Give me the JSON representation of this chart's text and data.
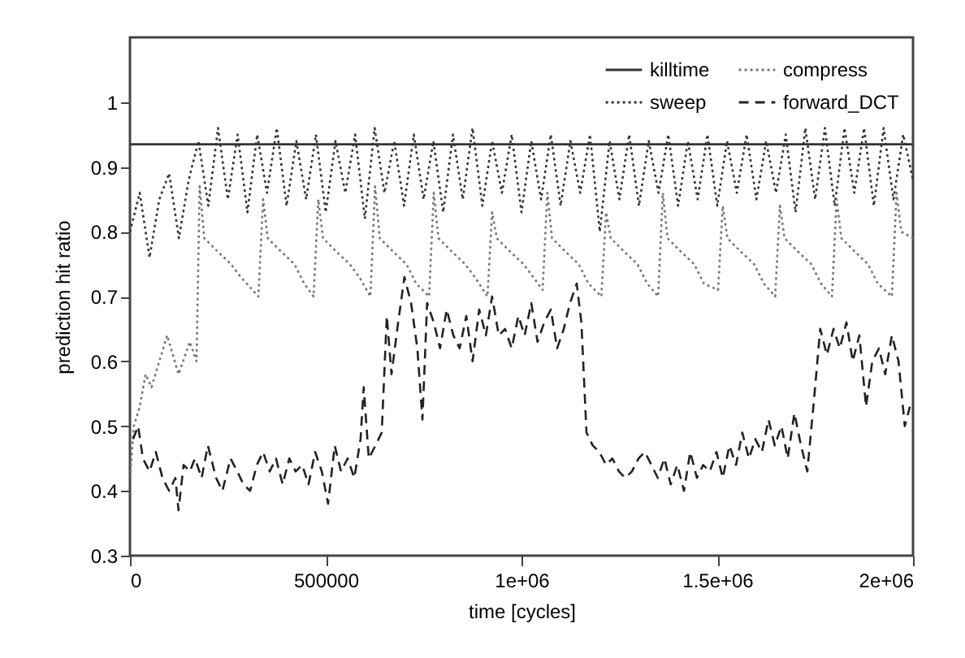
{
  "chart_data": {
    "type": "line",
    "xlabel": "time [cycles]",
    "ylabel": "prediction hit ratio",
    "xlim": [
      0,
      2000000
    ],
    "ylim": [
      0.3,
      1.1
    ],
    "xticks": [
      0,
      500000,
      {
        "value": 1000000,
        "label": "1e+06"
      },
      {
        "value": 1500000,
        "label": "1.5e+06"
      },
      {
        "value": 2000000,
        "label": "2e+06"
      }
    ],
    "yticks": [
      0.3,
      0.4,
      0.5,
      0.6,
      0.7,
      0.8,
      0.9,
      1
    ],
    "legend": "top right",
    "series": [
      {
        "name": "killtime",
        "color": "#333333",
        "line_style": "solid",
        "x": [
          0,
          500000,
          1000000,
          1500000,
          2000000
        ],
        "values": [
          0.935,
          0.935,
          0.935,
          0.935,
          0.935
        ]
      },
      {
        "name": "sweep",
        "color": "#333333",
        "line_style": "dotted",
        "x": [
          0,
          25000,
          50000,
          75000,
          100000,
          125000,
          150000,
          175000,
          200000,
          225000,
          250000,
          275000,
          300000,
          325000,
          350000,
          375000,
          400000,
          425000,
          450000,
          475000,
          500000,
          525000,
          550000,
          575000,
          600000,
          625000,
          650000,
          675000,
          700000,
          725000,
          750000,
          775000,
          800000,
          825000,
          850000,
          875000,
          900000,
          925000,
          950000,
          975000,
          1000000,
          1025000,
          1050000,
          1075000,
          1100000,
          1125000,
          1150000,
          1175000,
          1200000,
          1225000,
          1250000,
          1275000,
          1300000,
          1325000,
          1350000,
          1375000,
          1400000,
          1425000,
          1450000,
          1475000,
          1500000,
          1525000,
          1550000,
          1575000,
          1600000,
          1625000,
          1650000,
          1675000,
          1700000,
          1725000,
          1750000,
          1775000,
          1800000,
          1825000,
          1850000,
          1875000,
          1900000,
          1925000,
          1950000,
          1975000,
          2000000
        ],
        "values": [
          0.8,
          0.86,
          0.76,
          0.85,
          0.89,
          0.79,
          0.88,
          0.94,
          0.84,
          0.96,
          0.85,
          0.95,
          0.83,
          0.95,
          0.86,
          0.96,
          0.84,
          0.94,
          0.85,
          0.95,
          0.83,
          0.94,
          0.86,
          0.95,
          0.82,
          0.96,
          0.86,
          0.94,
          0.84,
          0.95,
          0.85,
          0.94,
          0.83,
          0.95,
          0.85,
          0.96,
          0.84,
          0.94,
          0.86,
          0.95,
          0.83,
          0.94,
          0.85,
          0.95,
          0.84,
          0.94,
          0.86,
          0.95,
          0.8,
          0.94,
          0.85,
          0.95,
          0.84,
          0.94,
          0.86,
          0.95,
          0.84,
          0.94,
          0.85,
          0.95,
          0.84,
          0.94,
          0.86,
          0.95,
          0.85,
          0.94,
          0.86,
          0.95,
          0.83,
          0.96,
          0.85,
          0.96,
          0.84,
          0.96,
          0.86,
          0.96,
          0.84,
          0.96,
          0.85,
          0.95,
          0.88
        ]
      },
      {
        "name": "compress",
        "color": "#777777",
        "line_style": "dotted",
        "x": [
          0,
          10000,
          25000,
          40000,
          55000,
          95000,
          124000,
          153000,
          170000,
          178000,
          190000,
          223000,
          258000,
          283000,
          328000,
          340000,
          352000,
          385000,
          420000,
          445000,
          469000,
          481000,
          493000,
          526000,
          561000,
          586000,
          614000,
          626000,
          638000,
          671000,
          706000,
          731000,
          764000,
          776000,
          788000,
          821000,
          856000,
          881000,
          913000,
          925000,
          937000,
          970000,
          1005000,
          1030000,
          1054000,
          1066000,
          1078000,
          1111000,
          1146000,
          1171000,
          1204000,
          1216000,
          1228000,
          1261000,
          1296000,
          1321000,
          1349000,
          1361000,
          1373000,
          1406000,
          1441000,
          1466000,
          1502000,
          1514000,
          1526000,
          1559000,
          1594000,
          1619000,
          1648000,
          1660000,
          1672000,
          1705000,
          1740000,
          1765000,
          1793000,
          1805000,
          1817000,
          1850000,
          1885000,
          1910000,
          1946000,
          1958000,
          1970000,
          2000000
        ],
        "values": [
          0.42,
          0.5,
          0.53,
          0.58,
          0.56,
          0.64,
          0.58,
          0.63,
          0.6,
          0.87,
          0.79,
          0.77,
          0.75,
          0.73,
          0.7,
          0.85,
          0.79,
          0.77,
          0.75,
          0.72,
          0.7,
          0.85,
          0.79,
          0.77,
          0.75,
          0.73,
          0.7,
          0.87,
          0.79,
          0.77,
          0.75,
          0.72,
          0.7,
          0.86,
          0.79,
          0.77,
          0.75,
          0.73,
          0.7,
          0.83,
          0.79,
          0.77,
          0.75,
          0.73,
          0.71,
          0.86,
          0.79,
          0.77,
          0.75,
          0.72,
          0.7,
          0.83,
          0.79,
          0.77,
          0.75,
          0.72,
          0.7,
          0.86,
          0.79,
          0.77,
          0.75,
          0.72,
          0.71,
          0.84,
          0.79,
          0.77,
          0.75,
          0.72,
          0.7,
          0.84,
          0.79,
          0.77,
          0.75,
          0.72,
          0.7,
          0.85,
          0.79,
          0.77,
          0.75,
          0.72,
          0.7,
          0.86,
          0.8,
          0.79
        ]
      },
      {
        "name": "forward_DCT",
        "color": "#222222",
        "line_style": "dashed",
        "x": [
          8000,
          21000,
          33000,
          50000,
          66000,
          83000,
          100000,
          116000,
          124000,
          137000,
          153000,
          166000,
          183000,
          199000,
          220000,
          236000,
          257000,
          274000,
          290000,
          307000,
          324000,
          340000,
          357000,
          373000,
          390000,
          407000,
          423000,
          440000,
          456000,
          473000,
          490000,
          506000,
          523000,
          539000,
          556000,
          573000,
          589000,
          597000,
          610000,
          627000,
          643000,
          656000,
          668000,
          685000,
          701000,
          718000,
          734000,
          747000,
          759000,
          776000,
          792000,
          809000,
          826000,
          842000,
          859000,
          875000,
          892000,
          909000,
          925000,
          942000,
          958000,
          975000,
          992000,
          1008000,
          1025000,
          1041000,
          1058000,
          1075000,
          1091000,
          1108000,
          1124000,
          1141000,
          1153000,
          1166000,
          1182000,
          1199000,
          1216000,
          1232000,
          1249000,
          1265000,
          1282000,
          1299000,
          1315000,
          1332000,
          1348000,
          1365000,
          1381000,
          1398000,
          1415000,
          1431000,
          1448000,
          1464000,
          1481000,
          1498000,
          1514000,
          1531000,
          1548000,
          1564000,
          1581000,
          1597000,
          1614000,
          1631000,
          1647000,
          1664000,
          1680000,
          1697000,
          1714000,
          1730000,
          1747000,
          1763000,
          1780000,
          1797000,
          1813000,
          1830000,
          1846000,
          1863000,
          1880000,
          1896000,
          1913000,
          1929000,
          1946000,
          1963000,
          1979000,
          1992000
        ],
        "values": [
          0.48,
          0.5,
          0.45,
          0.43,
          0.46,
          0.42,
          0.4,
          0.42,
          0.37,
          0.44,
          0.43,
          0.45,
          0.42,
          0.47,
          0.42,
          0.4,
          0.45,
          0.43,
          0.41,
          0.4,
          0.44,
          0.46,
          0.43,
          0.45,
          0.41,
          0.45,
          0.43,
          0.44,
          0.41,
          0.46,
          0.43,
          0.38,
          0.47,
          0.43,
          0.45,
          0.42,
          0.48,
          0.56,
          0.45,
          0.47,
          0.49,
          0.67,
          0.58,
          0.66,
          0.73,
          0.69,
          0.62,
          0.51,
          0.69,
          0.66,
          0.62,
          0.68,
          0.64,
          0.62,
          0.67,
          0.6,
          0.68,
          0.64,
          0.7,
          0.64,
          0.65,
          0.62,
          0.67,
          0.64,
          0.69,
          0.63,
          0.66,
          0.68,
          0.62,
          0.65,
          0.69,
          0.72,
          0.66,
          0.49,
          0.47,
          0.46,
          0.44,
          0.45,
          0.43,
          0.42,
          0.43,
          0.45,
          0.46,
          0.44,
          0.42,
          0.45,
          0.41,
          0.44,
          0.4,
          0.46,
          0.42,
          0.44,
          0.43,
          0.46,
          0.42,
          0.47,
          0.44,
          0.49,
          0.45,
          0.48,
          0.46,
          0.51,
          0.47,
          0.5,
          0.45,
          0.52,
          0.47,
          0.43,
          0.54,
          0.65,
          0.61,
          0.65,
          0.62,
          0.66,
          0.6,
          0.64,
          0.53,
          0.6,
          0.62,
          0.58,
          0.64,
          0.6,
          0.5,
          0.53
        ]
      }
    ]
  }
}
